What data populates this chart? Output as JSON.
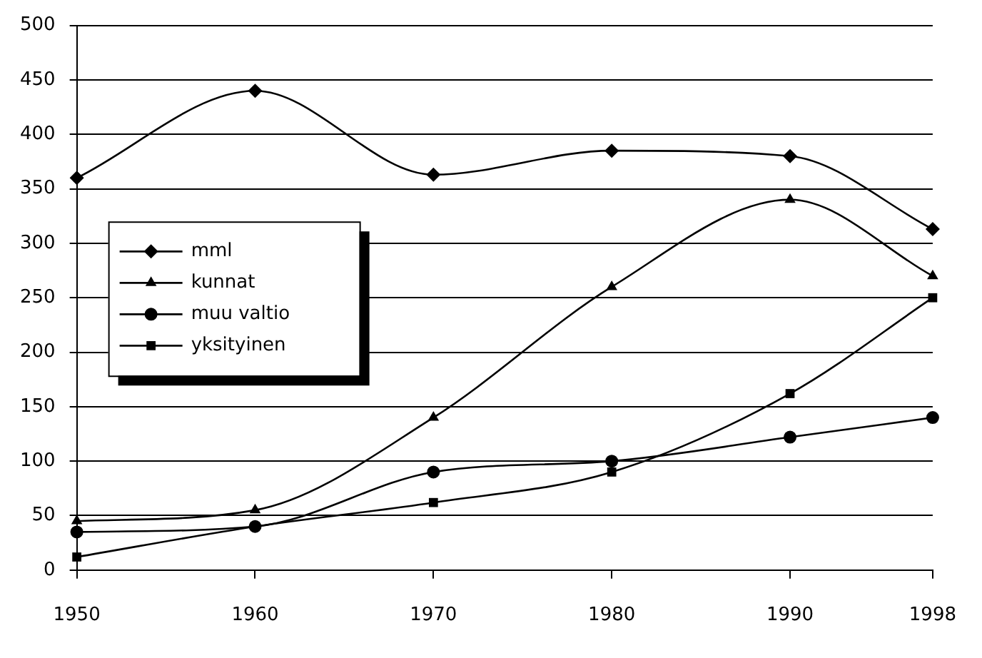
{
  "chart_data": {
    "type": "line",
    "x": [
      1950,
      1960,
      1970,
      1980,
      1990,
      1998
    ],
    "xlim": [
      1950,
      1998
    ],
    "xticks": [
      1950,
      1960,
      1970,
      1980,
      1990,
      1998
    ],
    "ylim": [
      0,
      500
    ],
    "yticks": [
      0,
      50,
      100,
      150,
      200,
      250,
      300,
      350,
      400,
      450,
      500
    ],
    "grid": "y",
    "legend": "left",
    "series": [
      {
        "name": "mml",
        "color": "#000000",
        "marker": "diamond",
        "values": [
          360,
          440,
          363,
          385,
          380,
          313
        ]
      },
      {
        "name": "kunnat",
        "color": "#000000",
        "marker": "triangle",
        "values": [
          45,
          55,
          140,
          260,
          340,
          270
        ]
      },
      {
        "name": "muu valtio",
        "color": "#000000",
        "marker": "circle",
        "values": [
          35,
          40,
          90,
          100,
          122,
          140
        ]
      },
      {
        "name": "yksityinen",
        "color": "#000000",
        "marker": "square",
        "values": [
          12,
          40,
          62,
          90,
          162,
          250
        ]
      }
    ]
  }
}
